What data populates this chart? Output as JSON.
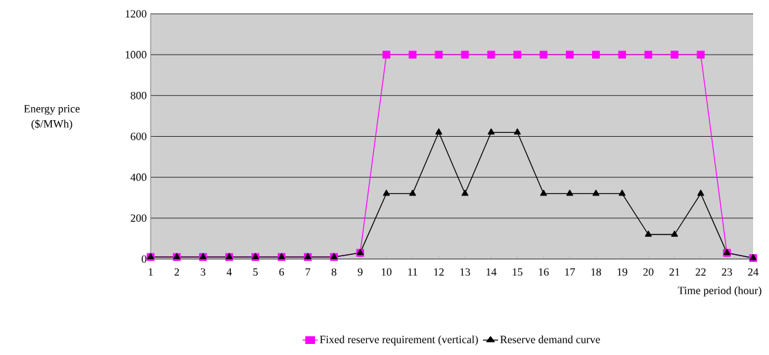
{
  "chart_data": {
    "type": "line",
    "xlabel": "Time period (hour)",
    "ylabel": "Energy price\n($/MWh)",
    "categories": [
      "1",
      "2",
      "3",
      "4",
      "5",
      "6",
      "7",
      "8",
      "9",
      "10",
      "11",
      "12",
      "13",
      "14",
      "15",
      "16",
      "17",
      "18",
      "19",
      "20",
      "21",
      "22",
      "23",
      "24"
    ],
    "series": [
      {
        "name": "Fixed reserve requirement (vertical)",
        "color": "#ff00ff",
        "marker": "square",
        "values": [
          10,
          10,
          10,
          10,
          10,
          10,
          10,
          10,
          30,
          1000,
          1000,
          1000,
          1000,
          1000,
          1000,
          1000,
          1000,
          1000,
          1000,
          1000,
          1000,
          1000,
          30,
          5
        ]
      },
      {
        "name": "Reserve demand curve",
        "color": "#000000",
        "marker": "triangle",
        "values": [
          10,
          10,
          10,
          10,
          10,
          10,
          10,
          10,
          30,
          320,
          320,
          620,
          320,
          620,
          620,
          320,
          320,
          320,
          320,
          120,
          120,
          320,
          30,
          5
        ]
      }
    ],
    "ylim": [
      0,
      1200
    ],
    "yticks": [
      0,
      200,
      400,
      600,
      800,
      1000,
      1200
    ],
    "grid": "y",
    "legend": "bottom",
    "line_style": "solid"
  }
}
